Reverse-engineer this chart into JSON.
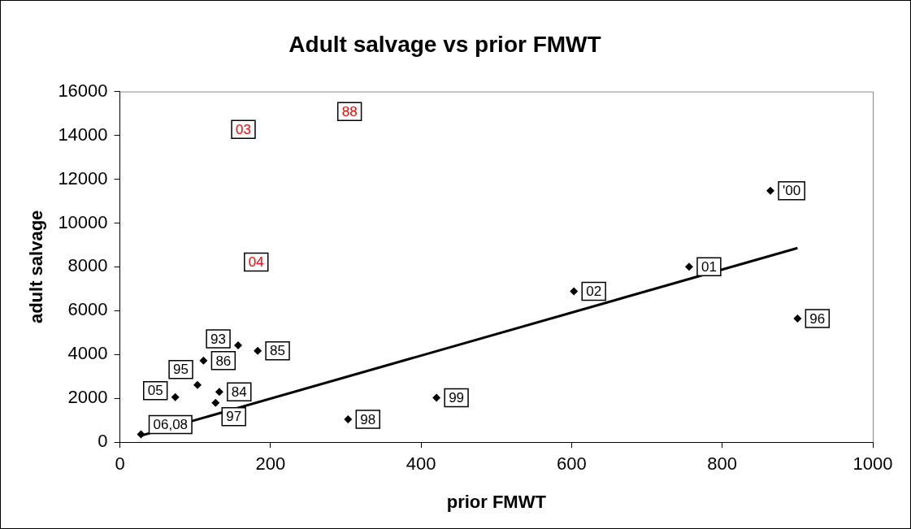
{
  "chart_data": {
    "type": "scatter",
    "title": "Adult salvage vs prior FMWT",
    "xlabel": "prior FMWT",
    "ylabel": "adult salvage",
    "xlim": [
      0,
      1000
    ],
    "xticks": [
      0,
      200,
      400,
      600,
      800,
      1000
    ],
    "ylim": [
      0,
      16000
    ],
    "yticks": [
      0,
      2000,
      4000,
      6000,
      8000,
      10000,
      12000,
      14000,
      16000
    ],
    "grid": false,
    "legend": false,
    "marker": "diamond",
    "series": [
      {
        "color": "#000000",
        "x": [
          28,
          73.5,
          103,
          111,
          132,
          127,
          157,
          183,
          303,
          420.5,
          603,
          756,
          864,
          900
        ],
        "values": [
          360,
          2060,
          2610,
          3720,
          2300,
          1800,
          4420,
          4170,
          1050,
          2030,
          6880,
          8010,
          11470,
          5640
        ]
      },
      {
        "type": "line",
        "color": "#000000",
        "marker": "none",
        "x": [
          28,
          900
        ],
        "values": [
          300,
          8860
        ]
      }
    ],
    "annotations": [
      {
        "text": "06,08",
        "x": 28,
        "y": 360
      },
      {
        "text": "05",
        "x": 73.5,
        "y": 2060
      },
      {
        "text": "95",
        "x": 103,
        "y": 2610
      },
      {
        "text": "86",
        "x": 111,
        "y": 3720
      },
      {
        "text": "84",
        "x": 132,
        "y": 2300
      },
      {
        "text": "97",
        "x": 127,
        "y": 1800
      },
      {
        "text": "93",
        "x": 157,
        "y": 4420
      },
      {
        "text": "85",
        "x": 183,
        "y": 4170
      },
      {
        "text": "98",
        "x": 303,
        "y": 1050
      },
      {
        "text": "99",
        "x": 420.5,
        "y": 2030
      },
      {
        "text": "02",
        "x": 603,
        "y": 6880
      },
      {
        "text": "01",
        "x": 756,
        "y": 8010
      },
      {
        "text": "'00",
        "x": 864,
        "y": 11470
      },
      {
        "text": "96",
        "x": 900,
        "y": 5640
      },
      {
        "text": "03",
        "x": 164,
        "y": 14270
      },
      {
        "text": "88",
        "x": 305,
        "y": 15090
      },
      {
        "text": "04",
        "x": 181,
        "y": 8220
      }
    ]
  }
}
